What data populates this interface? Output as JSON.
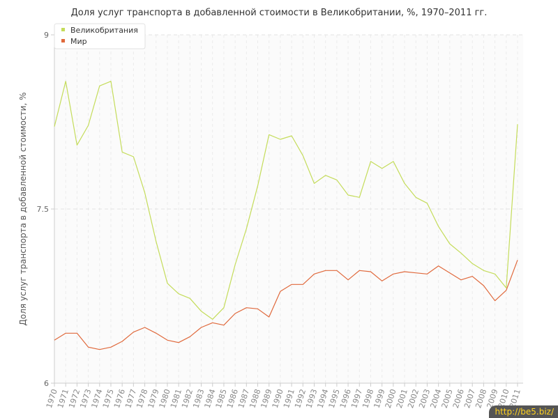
{
  "chart_data": {
    "type": "line",
    "title": "Доля услуг транспорта в добавленной стоимости в Великобритании, %, 1970–2011 гг.",
    "ylabel": "Доля услуг транспорта в добавленной стоимости, %",
    "xlabel": "",
    "ylim": [
      6,
      9
    ],
    "yticks": [
      "6",
      "7.5",
      "9"
    ],
    "legend_position": "top-left",
    "grid": true,
    "x": [
      "1970",
      "1971",
      "1972",
      "1973",
      "1974",
      "1975",
      "1976",
      "1977",
      "1978",
      "1979",
      "1980",
      "1981",
      "1982",
      "1983",
      "1984",
      "1985",
      "1986",
      "1987",
      "1988",
      "1989",
      "1990",
      "1991",
      "1992",
      "1993",
      "1994",
      "1995",
      "1996",
      "1997",
      "1998",
      "1999",
      "2000",
      "2001",
      "2002",
      "2003",
      "2004",
      "2005",
      "2006",
      "2007",
      "2008",
      "2009",
      "2010",
      "2011"
    ],
    "series": [
      {
        "name": "Великобритания",
        "color": "#c4dc5a",
        "values": [
          8.21,
          8.6,
          8.05,
          8.22,
          8.56,
          8.6,
          7.99,
          7.95,
          7.64,
          7.22,
          6.86,
          6.77,
          6.73,
          6.62,
          6.55,
          6.65,
          7.02,
          7.33,
          7.7,
          8.14,
          8.1,
          8.13,
          7.96,
          7.72,
          7.79,
          7.75,
          7.62,
          7.6,
          7.91,
          7.85,
          7.91,
          7.72,
          7.6,
          7.55,
          7.35,
          7.2,
          7.12,
          7.03,
          6.97,
          6.94,
          6.82,
          8.23
        ]
      },
      {
        "name": "Мир",
        "color": "#e0693c",
        "values": [
          6.37,
          6.43,
          6.43,
          6.31,
          6.29,
          6.31,
          6.36,
          6.44,
          6.48,
          6.43,
          6.37,
          6.35,
          6.4,
          6.48,
          6.52,
          6.5,
          6.6,
          6.65,
          6.64,
          6.57,
          6.79,
          6.85,
          6.85,
          6.94,
          6.97,
          6.97,
          6.89,
          6.97,
          6.96,
          6.88,
          6.94,
          6.96,
          6.95,
          6.94,
          7.01,
          6.95,
          6.89,
          6.92,
          6.84,
          6.71,
          6.8,
          7.06
        ]
      }
    ]
  },
  "watermark": "http://be5.biz/"
}
